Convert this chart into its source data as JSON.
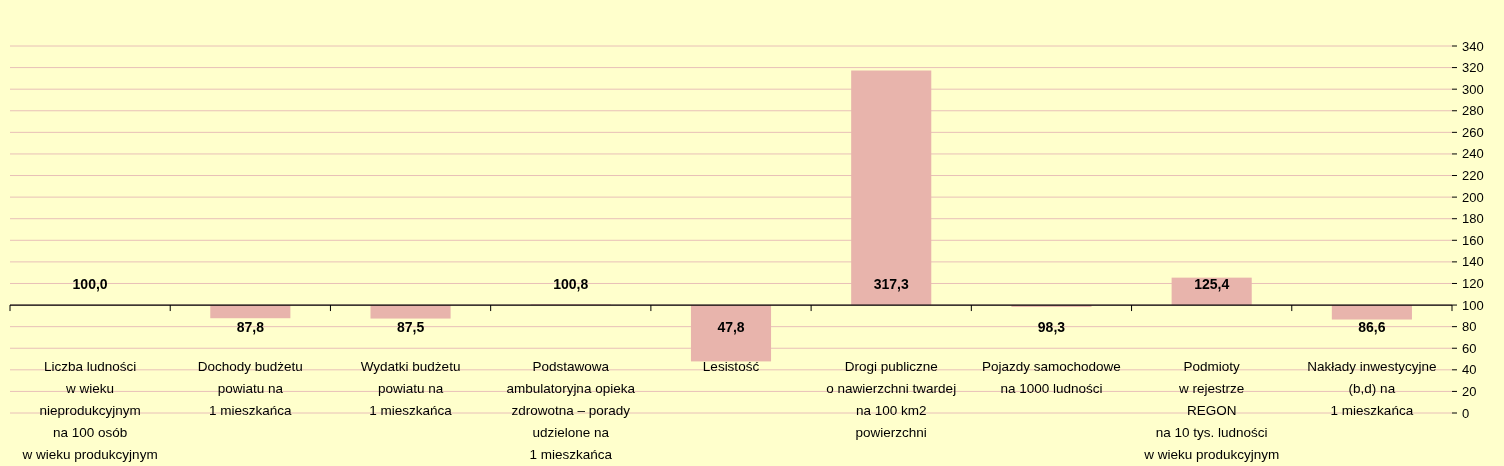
{
  "chart_data": {
    "type": "bar",
    "categories": [
      "Liczba ludności\nw wieku\nnieprodukcyjnym\nna 100 osób\nw wieku produkcyjnym",
      "Dochody budżetu\npowiatu na\n1 mieszkańca",
      "Wydatki budżetu\npowiatu na\n1 mieszkańca",
      "Podstawowa\nambulatoryjna opieka\nzdrowotna – porady\nudzielone na\n1 mieszkańca",
      "Lesistość",
      "Drogi publiczne\no nawierzchni twardej\nna 100 km2\npowierzchni",
      "Pojazdy samochodowe\nna 1000 ludności",
      "Podmioty\nw rejestrze\nREGON\nna 10 tys. ludności\nw wieku produkcyjnym",
      "Nakłady inwestycyjne\n(b,d) na\n1 mieszkańca"
    ],
    "base": [
      100,
      100,
      100,
      100,
      100,
      100,
      100,
      100,
      100
    ],
    "values": [
      0,
      -12.2,
      -12.5,
      0.8,
      -52.2,
      217.3,
      -1.7,
      25.4,
      -13.4
    ],
    "value_labels": [
      "100,0",
      "87,8",
      "87,5",
      "100,8",
      "47,8",
      "317,3",
      "98,3",
      "125,4",
      "86,6"
    ],
    "color": "#e8b4ac",
    "ylim": [
      0,
      340
    ],
    "yticks": [
      0,
      20,
      40,
      60,
      80,
      100,
      120,
      140,
      160,
      180,
      200,
      220,
      240,
      260,
      280,
      300,
      320,
      340
    ],
    "grid": "y",
    "ref_lines": [
      {
        "axis": "y",
        "value": 100,
        "color": "#000000"
      }
    ]
  }
}
